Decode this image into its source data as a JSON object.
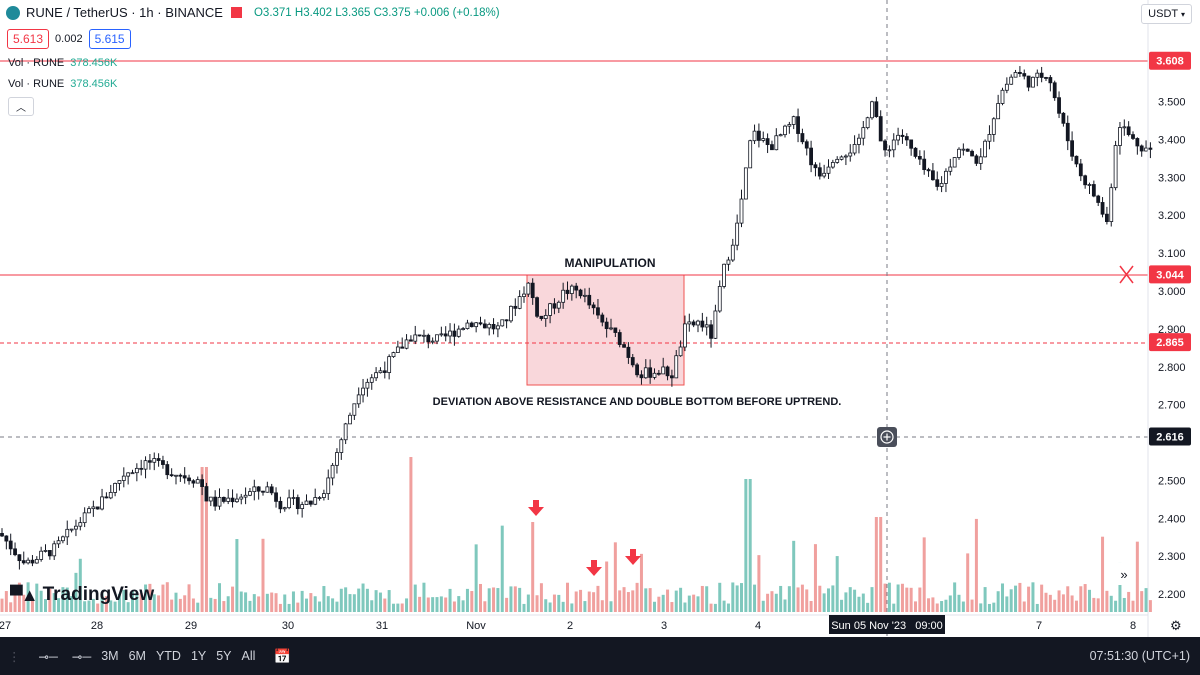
{
  "header": {
    "symbol": "RUNE / TetherUS · 1h · BINANCE",
    "open": "O3.371",
    "high": "H3.402",
    "low": "L3.365",
    "close": "C3.375",
    "change": "+0.006 (+0.18%)"
  },
  "trade": {
    "sell": "5.613",
    "spread": "0.002",
    "buy": "5.615"
  },
  "volume_rows": [
    {
      "label": "Vol · RUNE",
      "value": "378.456K"
    },
    {
      "label": "Vol · RUNE",
      "value": "378.456K"
    }
  ],
  "currency_label": "USDT",
  "annotations": {
    "box_title": "MANIPULATION",
    "caption": "DEVIATION ABOVE RESISTANCE AND DOUBLE BOTTOM BEFORE UPTREND."
  },
  "price_scale": {
    "ticks": [
      "3.500",
      "3.400",
      "3.300",
      "3.200",
      "3.100",
      "3.000",
      "2.900",
      "2.800",
      "2.700",
      "2.500",
      "2.400",
      "2.300",
      "2.200"
    ],
    "labels": [
      {
        "value": 3.608,
        "text": "3.608",
        "color": "#f23645"
      },
      {
        "value": 3.044,
        "text": "3.044",
        "color": "#f23645"
      },
      {
        "value": 2.865,
        "text": "2.865",
        "color": "#f23645"
      },
      {
        "value": 2.616,
        "text": "2.616",
        "color": "#131722"
      }
    ]
  },
  "time_axis": {
    "labels": [
      "27",
      "28",
      "29",
      "30",
      "31",
      "Nov",
      "2",
      "3",
      "4",
      "7",
      "8"
    ],
    "crosshair_label": "Sun 05 Nov '23   09:00"
  },
  "bottom_bar": {
    "timeframes": [
      "3M",
      "6M",
      "YTD",
      "1Y",
      "5Y",
      "All"
    ],
    "clock": "07:51:30 (UTC+1)"
  },
  "brand": "TradingView",
  "colors": {
    "up": "#26a69a",
    "down": "#ef5350",
    "line": "#f23645",
    "box": "#f7c9cf"
  },
  "icons": [
    "coin-icon",
    "flag-icon",
    "chevron-up-icon",
    "plus-circle-icon",
    "double-chevron-right-icon",
    "gear-icon",
    "calendar-icon",
    "x-mark-icon",
    "arrow-down-icon"
  ]
}
